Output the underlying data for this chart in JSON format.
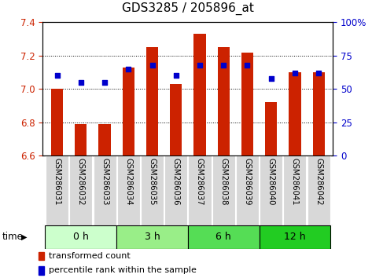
{
  "title": "GDS3285 / 205896_at",
  "samples": [
    "GSM286031",
    "GSM286032",
    "GSM286033",
    "GSM286034",
    "GSM286035",
    "GSM286036",
    "GSM286037",
    "GSM286038",
    "GSM286039",
    "GSM286040",
    "GSM286041",
    "GSM286042"
  ],
  "transformed_count": [
    7.0,
    6.79,
    6.79,
    7.13,
    7.25,
    7.03,
    7.33,
    7.25,
    7.22,
    6.92,
    7.1,
    7.1
  ],
  "percentile_rank": [
    60,
    55,
    55,
    65,
    68,
    60,
    68,
    68,
    68,
    58,
    62,
    62
  ],
  "ylim_left": [
    6.6,
    7.4
  ],
  "ylim_right": [
    0,
    100
  ],
  "yticks_left": [
    6.6,
    6.8,
    7.0,
    7.2,
    7.4
  ],
  "yticks_right": [
    0,
    25,
    50,
    75,
    100
  ],
  "bar_color": "#cc2200",
  "dot_color": "#0000cc",
  "bar_baseline": 6.6,
  "groups": [
    {
      "label": "0 h",
      "indices": [
        0,
        1,
        2
      ],
      "color": "#ccffcc"
    },
    {
      "label": "3 h",
      "indices": [
        3,
        4,
        5
      ],
      "color": "#99ee88"
    },
    {
      "label": "6 h",
      "indices": [
        6,
        7,
        8
      ],
      "color": "#55dd55"
    },
    {
      "label": "12 h",
      "indices": [
        9,
        10,
        11
      ],
      "color": "#22cc22"
    }
  ],
  "group_colors": [
    "#ccffcc",
    "#99ee88",
    "#55dd55",
    "#22cc22"
  ],
  "time_label": "time",
  "legend_bar_label": "transformed count",
  "legend_dot_label": "percentile rank within the sample",
  "grid_color": "#000000",
  "title_fontsize": 11,
  "tick_fontsize": 8.5
}
